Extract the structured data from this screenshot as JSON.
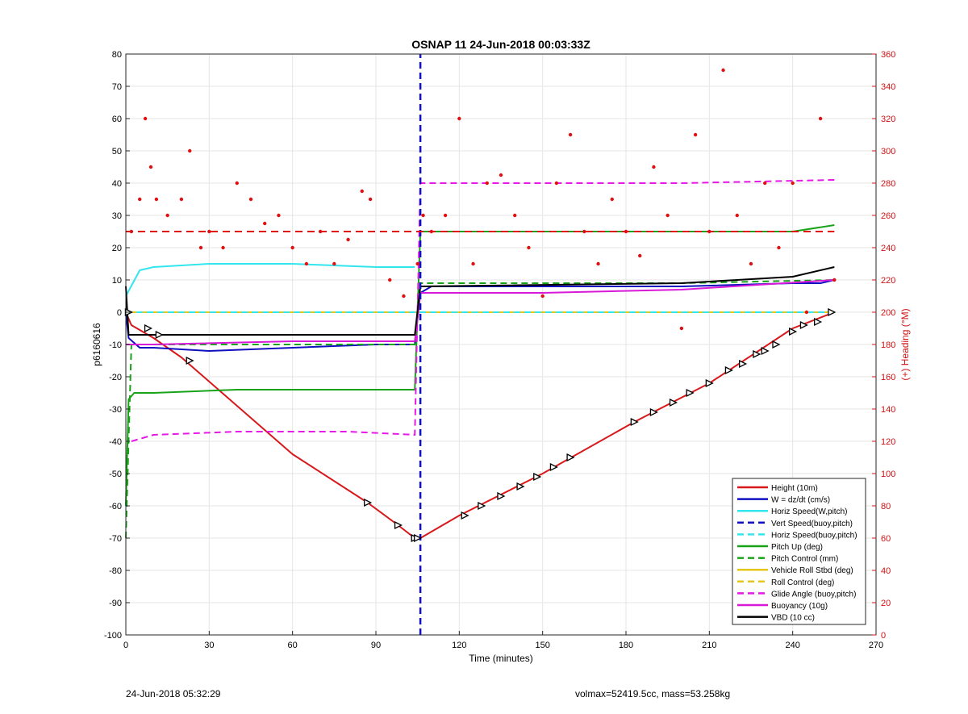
{
  "chart_data": {
    "type": "line",
    "title": "OSNAP 11 24-Jun-2018 00:03:33Z",
    "xlabel": "Time (minutes)",
    "ylabel": "p6160616",
    "ylabel_right": "(+) Heading (°M)",
    "xlim": [
      0,
      270
    ],
    "ylim": [
      -100,
      80
    ],
    "ylim_right": [
      0,
      360
    ],
    "xticks": [
      "0",
      "30",
      "60",
      "90",
      "120",
      "150",
      "180",
      "210",
      "240",
      "270"
    ],
    "yticks": [
      "80",
      "70",
      "60",
      "50",
      "40",
      "30",
      "20",
      "10",
      "0",
      "-10",
      "-20",
      "-30",
      "-40",
      "-50",
      "-60",
      "-70",
      "-80",
      "-90",
      "-100"
    ],
    "yticks_right": [
      "360",
      "340",
      "320",
      "300",
      "280",
      "260",
      "240",
      "220",
      "200",
      "180",
      "160",
      "140",
      "120",
      "100",
      "80",
      "60",
      "40",
      "20",
      "0"
    ],
    "grid": true,
    "legend_position": "bottom-right",
    "colors": {
      "height": "#d7191c",
      "w": "#1010c0",
      "horiz_speed": "#33e6ee",
      "pitch": "#19a319",
      "roll": "#e6c619",
      "glide": "#e619e6",
      "buoyancy": "#d919d9",
      "vbd": "#000000",
      "heading": "#e01010"
    },
    "legend": [
      {
        "label": "Height (10m)",
        "color": "#d7191c",
        "dash": false
      },
      {
        "label": "W = dz/dt (cm/s)",
        "color": "#1010c0",
        "dash": false
      },
      {
        "label": "Horiz Speed(W,pitch)",
        "color": "#33e6ee",
        "dash": false
      },
      {
        "label": "Vert Speed(buoy,pitch)",
        "color": "#1010c0",
        "dash": true
      },
      {
        "label": "Horiz Speed(buoy,pitch)",
        "color": "#33e6ee",
        "dash": true
      },
      {
        "label": "Pitch Up (deg)",
        "color": "#19a319",
        "dash": false
      },
      {
        "label": "Pitch Control (mm)",
        "color": "#19a319",
        "dash": true
      },
      {
        "label": "Vehicle Roll Stbd (deg)",
        "color": "#e6c619",
        "dash": false
      },
      {
        "label": "Roll Control (deg)",
        "color": "#e6c619",
        "dash": true
      },
      {
        "label": "Glide Angle (buoy,pitch)",
        "color": "#e619e6",
        "dash": true
      },
      {
        "label": "Buoyancy (10g)",
        "color": "#d919d9",
        "dash": false
      },
      {
        "label": "VBD (10 cc)",
        "color": "#000000",
        "dash": false
      }
    ],
    "series": [
      {
        "name": "Height (10m)",
        "x": [
          0,
          2,
          10,
          20,
          40,
          60,
          87,
          98,
          104,
          106,
          120,
          150,
          183,
          210,
          240,
          255
        ],
        "y": [
          0,
          -4,
          -8,
          -14,
          -29,
          -44,
          -59,
          -66,
          -70,
          -70,
          -63,
          -50,
          -34,
          -22,
          -5,
          0
        ]
      },
      {
        "name": "W = dz/dt (cm/s)",
        "x": [
          0,
          1,
          5,
          10,
          30,
          60,
          90,
          104,
          106,
          110,
          150,
          200,
          240,
          250,
          255
        ],
        "y": [
          0,
          -8,
          -11,
          -11,
          -12,
          -11,
          -10,
          -10,
          6,
          8,
          8,
          8,
          9,
          9,
          10
        ]
      },
      {
        "name": "Horiz Speed(W,pitch)",
        "x": [
          0,
          5,
          10,
          30,
          60,
          90,
          104
        ],
        "y": [
          5,
          13,
          14,
          15,
          15,
          14,
          14
        ]
      },
      {
        "name": "Pitch Up (deg)",
        "x": [
          0,
          1,
          3,
          10,
          40,
          80,
          104,
          106,
          120,
          180,
          240,
          255
        ],
        "y": [
          -60,
          -27,
          -25,
          -25,
          -24,
          -24,
          -24,
          25,
          25,
          25,
          25,
          27
        ]
      },
      {
        "name": "Pitch Control (mm)",
        "x": [
          0,
          2,
          10,
          60,
          104,
          106,
          150,
          200,
          255
        ],
        "y": [
          -70,
          -10,
          -10,
          -10,
          -10,
          9,
          9,
          9,
          10
        ]
      },
      {
        "name": "Vehicle Roll Stbd (deg)",
        "x": [
          0,
          10,
          50,
          104,
          106,
          150,
          200,
          255
        ],
        "y": [
          0,
          0,
          0,
          0,
          0,
          0,
          0,
          0
        ]
      },
      {
        "name": "Glide Angle (buoy,pitch)",
        "x": [
          2,
          10,
          40,
          80,
          104,
          106,
          150,
          200,
          255
        ],
        "y": [
          -40,
          -38,
          -37,
          -37,
          -38,
          40,
          40,
          40,
          41
        ]
      },
      {
        "name": "Buoyancy (10g)",
        "x": [
          0,
          10,
          60,
          104,
          106,
          150,
          200,
          255
        ],
        "y": [
          -10,
          -10,
          -9,
          -9,
          6,
          6,
          7,
          10
        ]
      },
      {
        "name": "VBD (10 cc)",
        "x": [
          0,
          1,
          104,
          106,
          200,
          220,
          240,
          255
        ],
        "y": [
          8,
          -7,
          -7,
          8,
          9,
          10,
          11,
          14
        ]
      },
      {
        "name": "Vert Speed(buoy,pitch)",
        "x": [
          106,
          106
        ],
        "y": [
          -100,
          80
        ]
      },
      {
        "name": "Roll Control (deg)",
        "x": [
          0,
          255
        ],
        "y": [
          0,
          0
        ]
      },
      {
        "name": "Horiz Speed(buoy,pitch)",
        "x": [
          0,
          255
        ],
        "y": [
          0,
          0
        ]
      },
      {
        "name": "Heading",
        "axis": "right",
        "x": [
          2,
          5,
          7,
          9,
          11,
          15,
          20,
          23,
          27,
          30,
          35,
          40,
          45,
          50,
          55,
          60,
          65,
          70,
          75,
          80,
          85,
          88,
          95,
          100,
          105,
          107,
          110,
          115,
          120,
          125,
          130,
          135,
          140,
          145,
          150,
          155,
          160,
          165,
          170,
          175,
          180,
          185,
          190,
          195,
          200,
          205,
          210,
          215,
          220,
          225,
          230,
          235,
          240,
          245,
          250,
          255
        ],
        "y": [
          250,
          270,
          320,
          290,
          270,
          260,
          270,
          300,
          240,
          250,
          240,
          280,
          270,
          255,
          260,
          240,
          230,
          250,
          230,
          245,
          275,
          270,
          220,
          210,
          230,
          260,
          250,
          260,
          320,
          230,
          280,
          285,
          260,
          240,
          210,
          280,
          310,
          250,
          230,
          270,
          250,
          235,
          290,
          260,
          190,
          310,
          250,
          350,
          260,
          230,
          280,
          240,
          280,
          200,
          320,
          220
        ]
      },
      {
        "name": "Heading dashed",
        "axis": "right",
        "x": [
          0,
          255
        ],
        "y": [
          250,
          250
        ]
      }
    ],
    "markers": {
      "x": [
        1,
        8,
        12,
        23,
        87,
        98,
        104,
        105,
        122,
        128,
        135,
        142,
        148,
        154,
        160,
        183,
        190,
        197,
        203,
        210,
        217,
        222,
        227,
        230,
        234,
        240,
        244,
        249,
        254
      ],
      "y": [
        0,
        -5,
        -7,
        -15,
        -59,
        -66,
        -70,
        -70,
        -63,
        -60,
        -57,
        -54,
        -51,
        -48,
        -45,
        -34,
        -31,
        -28,
        -25,
        -22,
        -18,
        -16,
        -13,
        -12,
        -10,
        -6,
        -4,
        -3,
        0
      ]
    }
  },
  "footer": {
    "timestamp": "24-Jun-2018 05:32:29",
    "info": "volmax=52419.5cc, mass=53.258kg"
  }
}
